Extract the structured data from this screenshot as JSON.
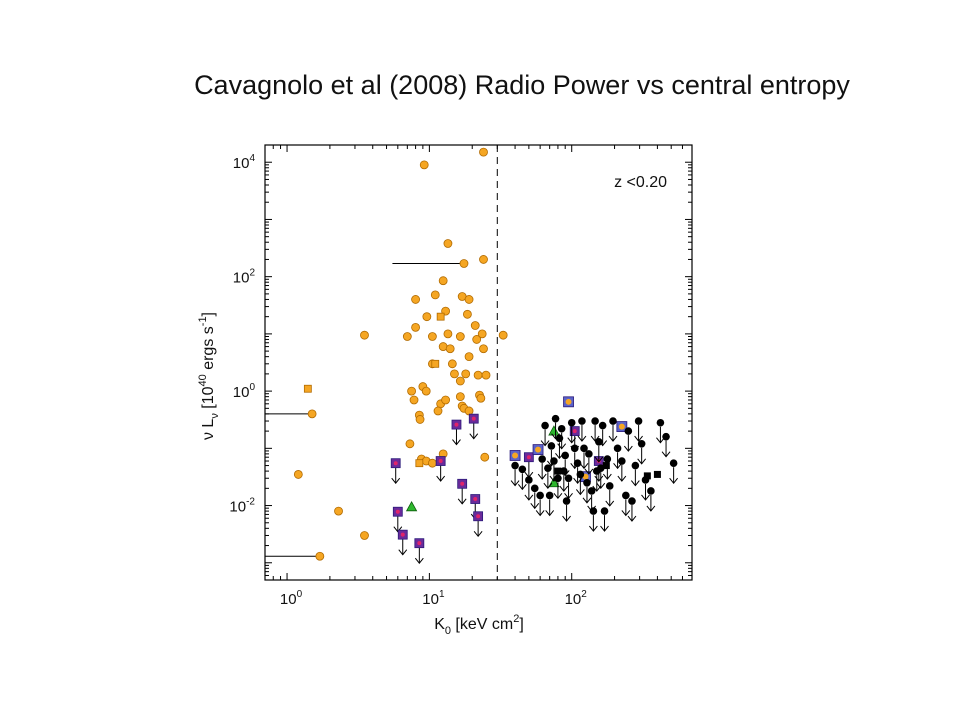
{
  "slide": {
    "title": "Cavagnolo et al (2008) Radio Power vs central entropy"
  },
  "chart_data": {
    "type": "scatter",
    "title": "",
    "xlabel": "K0 [keV cm2]",
    "ylabel": "νLν [1040 ergs s-1]",
    "xlabel_parts": {
      "main": "K",
      "sub": "0",
      "mid": " [keV cm",
      "sup": "2",
      "end": "]"
    },
    "ylabel_parts": {
      "nu": "ν",
      "L": "L",
      "sub": "ν",
      "mid": " [10",
      "sup": "40",
      "mid2": " ergs s",
      "sup2": "-1",
      "end": "]"
    },
    "annotation": "z <0.20",
    "xscale": "log",
    "yscale": "log",
    "xlim": [
      0.7,
      700
    ],
    "ylim": [
      0.0005,
      20000
    ],
    "x_ticks": [
      {
        "value": 1,
        "base": "10",
        "exp": "0"
      },
      {
        "value": 10,
        "base": "10",
        "exp": "1"
      },
      {
        "value": 100,
        "base": "10",
        "exp": "2"
      }
    ],
    "y_ticks": [
      {
        "value": 0.01,
        "base": "10",
        "exp": "-2"
      },
      {
        "value": 1,
        "base": "10",
        "exp": "0"
      },
      {
        "value": 100,
        "base": "10",
        "exp": "2"
      },
      {
        "value": 10000,
        "base": "10",
        "exp": "4"
      }
    ],
    "grid": false,
    "reference_line": {
      "x": 30,
      "style": "dashed"
    },
    "colors": {
      "orange": "#f5a623",
      "black": "#000000",
      "purple": "#6a2b9b",
      "green": "#2eb82e",
      "axis": "#000000"
    },
    "series": [
      {
        "marker": "circle",
        "color": "orange",
        "points": [
          {
            "x": 1.2,
            "y": 0.035
          },
          {
            "x": 1.5,
            "y": 0.4,
            "xerr_low": 1.1
          },
          {
            "x": 1.7,
            "y": 0.0013,
            "xerr_low": 1.4
          },
          {
            "x": 2.3,
            "y": 0.008
          },
          {
            "x": 3.5,
            "y": 0.003
          },
          {
            "x": 3.5,
            "y": 9.5
          },
          {
            "x": 7,
            "y": 9
          },
          {
            "x": 9.2,
            "y": 9000
          },
          {
            "x": 8,
            "y": 40
          },
          {
            "x": 8,
            "y": 13
          },
          {
            "x": 7.5,
            "y": 1.0
          },
          {
            "x": 7.8,
            "y": 0.7
          },
          {
            "x": 8.5,
            "y": 0.38
          },
          {
            "x": 8.6,
            "y": 0.32
          },
          {
            "x": 7.3,
            "y": 0.12
          },
          {
            "x": 8.8,
            "y": 0.065
          },
          {
            "x": 9.5,
            "y": 0.06
          },
          {
            "x": 10.5,
            "y": 0.055
          },
          {
            "x": 9.6,
            "y": 20
          },
          {
            "x": 10.5,
            "y": 3
          },
          {
            "x": 9,
            "y": 1.2
          },
          {
            "x": 9.5,
            "y": 1.0
          },
          {
            "x": 10.5,
            "y": 9
          },
          {
            "x": 11,
            "y": 48
          },
          {
            "x": 12.5,
            "y": 6
          },
          {
            "x": 12,
            "y": 0.6
          },
          {
            "x": 11.5,
            "y": 0.45
          },
          {
            "x": 12.5,
            "y": 0.08
          },
          {
            "x": 13.5,
            "y": 380
          },
          {
            "x": 12.5,
            "y": 85
          },
          {
            "x": 13,
            "y": 25
          },
          {
            "x": 13.5,
            "y": 10
          },
          {
            "x": 14,
            "y": 5.5
          },
          {
            "x": 14.5,
            "y": 3
          },
          {
            "x": 15,
            "y": 2
          },
          {
            "x": 13,
            "y": 0.7
          },
          {
            "x": 16.5,
            "y": 1.5
          },
          {
            "x": 17.5,
            "y": 170,
            "xerr_low": 12
          },
          {
            "x": 17,
            "y": 45
          },
          {
            "x": 18.5,
            "y": 22
          },
          {
            "x": 16.5,
            "y": 9
          },
          {
            "x": 19,
            "y": 4
          },
          {
            "x": 18,
            "y": 2
          },
          {
            "x": 16.5,
            "y": 0.8
          },
          {
            "x": 17,
            "y": 0.55
          },
          {
            "x": 17.5,
            "y": 0.5
          },
          {
            "x": 19,
            "y": 0.45
          },
          {
            "x": 19,
            "y": 40
          },
          {
            "x": 21,
            "y": 14
          },
          {
            "x": 21.5,
            "y": 8
          },
          {
            "x": 22,
            "y": 1.9
          },
          {
            "x": 22.5,
            "y": 0.85
          },
          {
            "x": 23,
            "y": 0.75
          },
          {
            "x": 24,
            "y": 15000
          },
          {
            "x": 24,
            "y": 200
          },
          {
            "x": 23.5,
            "y": 10
          },
          {
            "x": 24,
            "y": 5.5
          },
          {
            "x": 25,
            "y": 1.9
          },
          {
            "x": 24.5,
            "y": 0.07
          },
          {
            "x": 33,
            "y": 9.5
          }
        ]
      },
      {
        "marker": "square",
        "color": "orange",
        "points": [
          {
            "x": 1.4,
            "y": 1.1
          },
          {
            "x": 11,
            "y": 3
          },
          {
            "x": 8.5,
            "y": 0.055
          },
          {
            "x": 12,
            "y": 20
          }
        ]
      },
      {
        "marker": "square-purple-upper-limit",
        "color": "purple",
        "points": [
          {
            "x": 5.8,
            "y": 0.055
          },
          {
            "x": 6.0,
            "y": 0.0078
          },
          {
            "x": 6.5,
            "y": 0.0031
          },
          {
            "x": 8.5,
            "y": 0.0022
          },
          {
            "x": 12,
            "y": 0.06
          },
          {
            "x": 15.5,
            "y": 0.26
          },
          {
            "x": 17,
            "y": 0.024
          },
          {
            "x": 20.5,
            "y": 0.33
          },
          {
            "x": 21,
            "y": 0.013
          },
          {
            "x": 22,
            "y": 0.0065
          },
          {
            "x": 50,
            "y": 0.07
          },
          {
            "x": 105,
            "y": 0.2
          },
          {
            "x": 155,
            "y": 0.06
          }
        ]
      },
      {
        "marker": "square-blue-orange",
        "color": "orange",
        "points": [
          {
            "x": 95,
            "y": 0.65
          },
          {
            "x": 225,
            "y": 0.24
          },
          {
            "x": 40,
            "y": 0.075
          },
          {
            "x": 58,
            "y": 0.095
          },
          {
            "x": 125,
            "y": 0.032
          }
        ]
      },
      {
        "marker": "triangle",
        "color": "green",
        "points": [
          {
            "x": 7.5,
            "y": 0.0095
          },
          {
            "x": 75,
            "y": 0.2
          },
          {
            "x": 75,
            "y": 0.025
          }
        ]
      },
      {
        "marker": "square",
        "color": "black",
        "points": [
          {
            "x": 80,
            "y": 0.04
          },
          {
            "x": 175,
            "y": 0.05
          },
          {
            "x": 340,
            "y": 0.033
          },
          {
            "x": 400,
            "y": 0.035
          }
        ]
      },
      {
        "marker": "circle-upper-limit",
        "color": "black",
        "points": [
          {
            "x": 40,
            "y": 0.05
          },
          {
            "x": 45,
            "y": 0.043
          },
          {
            "x": 50,
            "y": 0.028
          },
          {
            "x": 55,
            "y": 0.02
          },
          {
            "x": 60,
            "y": 0.015
          },
          {
            "x": 62,
            "y": 0.065
          },
          {
            "x": 65,
            "y": 0.25
          },
          {
            "x": 68,
            "y": 0.045
          },
          {
            "x": 70,
            "y": 0.015
          },
          {
            "x": 72,
            "y": 0.11
          },
          {
            "x": 75,
            "y": 0.06
          },
          {
            "x": 77,
            "y": 0.33
          },
          {
            "x": 80,
            "y": 0.03
          },
          {
            "x": 82,
            "y": 0.15
          },
          {
            "x": 85,
            "y": 0.22
          },
          {
            "x": 88,
            "y": 0.04
          },
          {
            "x": 90,
            "y": 0.075
          },
          {
            "x": 92,
            "y": 0.012
          },
          {
            "x": 95,
            "y": 0.03
          },
          {
            "x": 100,
            "y": 0.28
          },
          {
            "x": 105,
            "y": 0.1
          },
          {
            "x": 110,
            "y": 0.055
          },
          {
            "x": 115,
            "y": 0.035
          },
          {
            "x": 118,
            "y": 0.3
          },
          {
            "x": 122,
            "y": 0.1
          },
          {
            "x": 128,
            "y": 0.025
          },
          {
            "x": 132,
            "y": 0.08
          },
          {
            "x": 138,
            "y": 0.018
          },
          {
            "x": 142,
            "y": 0.008
          },
          {
            "x": 146,
            "y": 0.3
          },
          {
            "x": 150,
            "y": 0.04
          },
          {
            "x": 155,
            "y": 0.13
          },
          {
            "x": 160,
            "y": 0.045
          },
          {
            "x": 165,
            "y": 0.25
          },
          {
            "x": 170,
            "y": 0.008
          },
          {
            "x": 178,
            "y": 0.065
          },
          {
            "x": 185,
            "y": 0.022
          },
          {
            "x": 195,
            "y": 0.3
          },
          {
            "x": 210,
            "y": 0.1
          },
          {
            "x": 225,
            "y": 0.06
          },
          {
            "x": 240,
            "y": 0.015
          },
          {
            "x": 250,
            "y": 0.2
          },
          {
            "x": 265,
            "y": 0.012
          },
          {
            "x": 280,
            "y": 0.05
          },
          {
            "x": 295,
            "y": 0.3
          },
          {
            "x": 310,
            "y": 0.12
          },
          {
            "x": 330,
            "y": 0.028
          },
          {
            "x": 360,
            "y": 0.018
          },
          {
            "x": 420,
            "y": 0.28
          },
          {
            "x": 460,
            "y": 0.16
          },
          {
            "x": 520,
            "y": 0.055
          }
        ]
      }
    ]
  }
}
